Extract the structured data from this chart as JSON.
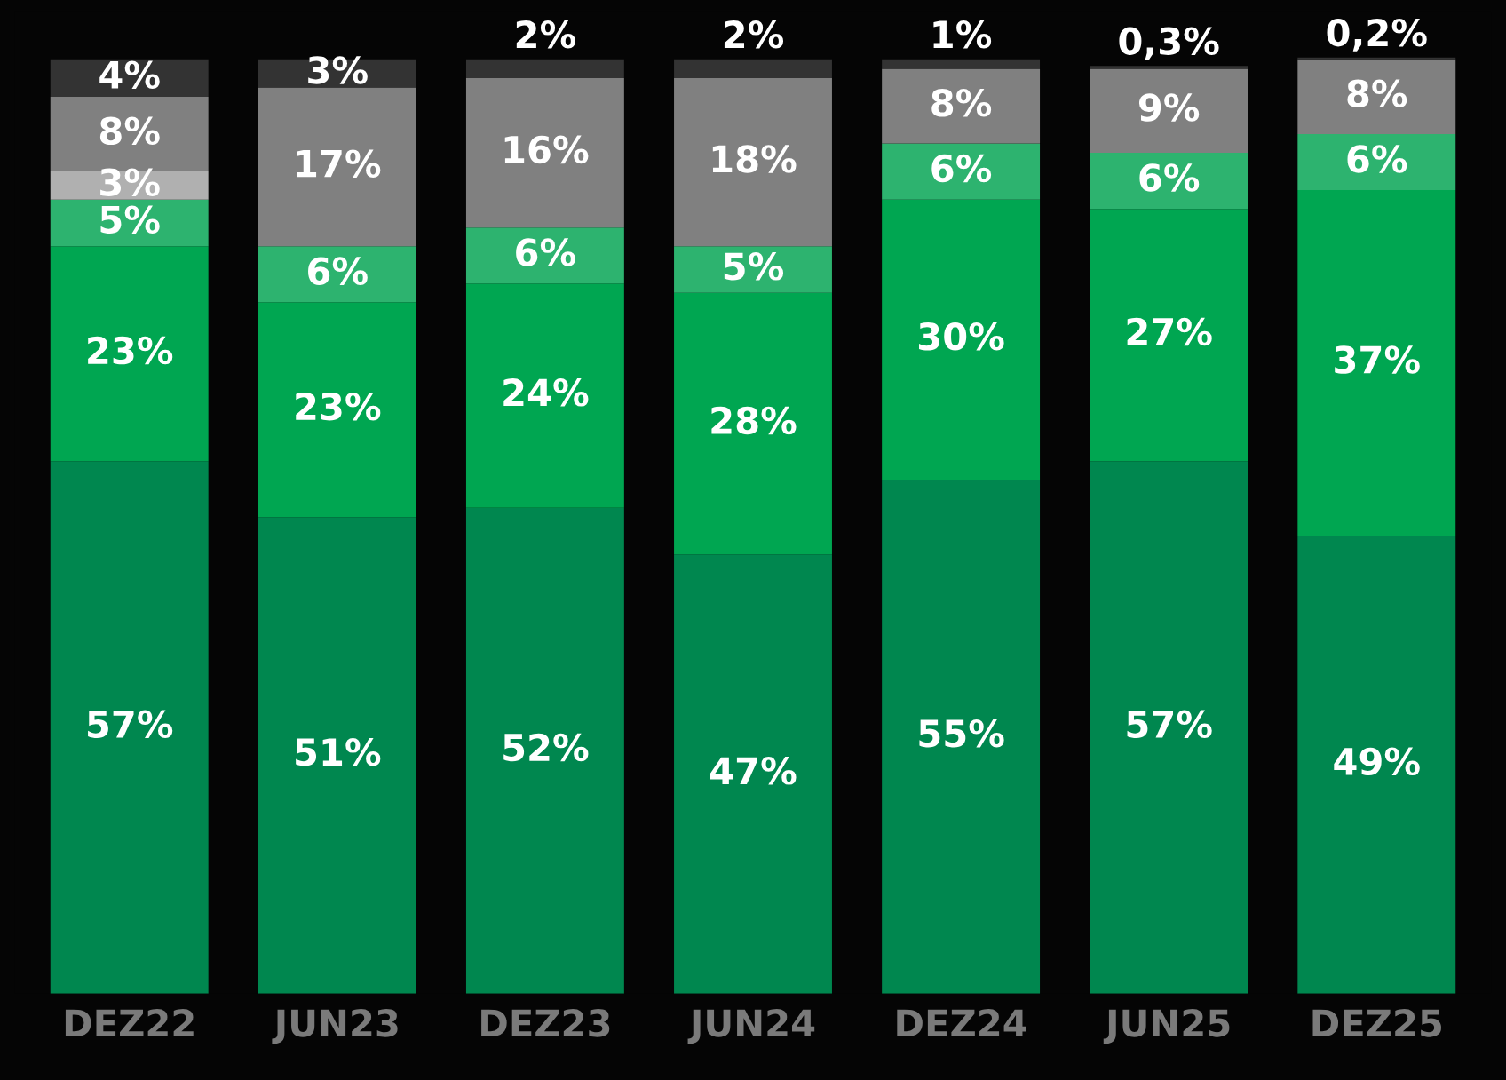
{
  "chart_data": {
    "type": "bar",
    "stacked": true,
    "tick_labels": "x",
    "grid": false,
    "legend": false,
    "categories": [
      "DEZ22",
      "JUN23",
      "DEZ23",
      "JUN24",
      "DEZ24",
      "JUN25",
      "DEZ25"
    ],
    "series": [
      {
        "color": "#00874f",
        "values": [
          57,
          51,
          52,
          47,
          55,
          57,
          49
        ],
        "value_labels": [
          "57%",
          "51%",
          "52%",
          "47%",
          "55%",
          "57%",
          "49%"
        ]
      },
      {
        "color": "#00a651",
        "values": [
          23,
          23,
          24,
          28,
          30,
          27,
          37
        ],
        "value_labels": [
          "23%",
          "23%",
          "24%",
          "28%",
          "30%",
          "27%",
          "37%"
        ]
      },
      {
        "color": "#2db36f",
        "values": [
          5,
          6,
          6,
          5,
          6,
          6,
          6
        ],
        "value_labels": [
          "5%",
          "6%",
          "6%",
          "5%",
          "6%",
          "6%",
          "6%"
        ]
      },
      {
        "color": "#b0b0b0",
        "values": [
          3,
          null,
          null,
          null,
          null,
          null,
          null
        ],
        "value_labels": [
          "3%",
          null,
          null,
          null,
          null,
          null,
          null
        ]
      },
      {
        "color": "#808080",
        "values": [
          8,
          17,
          16,
          18,
          8,
          9,
          8
        ],
        "value_labels": [
          "8%",
          "17%",
          "16%",
          "18%",
          "8%",
          "9%",
          "8%"
        ]
      },
      {
        "color": "#333333",
        "values": [
          4,
          3,
          2,
          2,
          1,
          0.3,
          0.2
        ],
        "value_labels": [
          "4%",
          "3%",
          "2%",
          "2%",
          "1%",
          "0,3%",
          "0,2%"
        ]
      }
    ]
  }
}
